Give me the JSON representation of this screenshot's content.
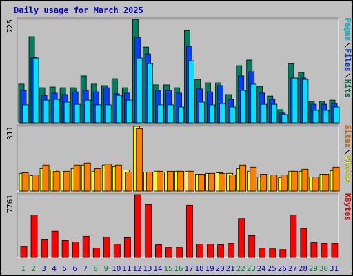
{
  "chart_data": [
    {
      "type": "bar",
      "title": "Daily usage for March 2025",
      "ylim": [
        0,
        725
      ],
      "yticks": [
        725
      ],
      "series": [
        {
          "name": "Hits",
          "color": "#008060",
          "values": [
            271,
            604,
            246,
            251,
            246,
            246,
            329,
            271,
            261,
            309,
            246,
            725,
            531,
            266,
            266,
            246,
            647,
            304,
            280,
            280,
            198,
            401,
            440,
            256,
            188,
            92,
            415,
            353,
            150,
            150,
            159
          ]
        },
        {
          "name": "Files",
          "color": "#0040ff",
          "values": [
            227,
            459,
            193,
            208,
            198,
            217,
            227,
            217,
            246,
            203,
            208,
            599,
            483,
            227,
            227,
            208,
            536,
            237,
            217,
            261,
            164,
            329,
            358,
            208,
            164,
            68,
            314,
            314,
            130,
            130,
            135
          ]
        },
        {
          "name": "Pages",
          "color": "#00e0ff",
          "values": [
            126,
            454,
            159,
            164,
            145,
            130,
            159,
            126,
            126,
            193,
            159,
            454,
            415,
            126,
            126,
            111,
            435,
            145,
            126,
            135,
            111,
            227,
            271,
            130,
            130,
            58,
            314,
            304,
            87,
            87,
            111
          ]
        }
      ]
    },
    {
      "type": "bar",
      "ylim": [
        0,
        311
      ],
      "yticks": [
        311
      ],
      "series": [
        {
          "name": "Visits",
          "color": "#ffff00",
          "values": [
            85,
            74,
            108,
            101,
            91,
            108,
            125,
            95,
            125,
            118,
            101,
            311,
            91,
            95,
            91,
            95,
            95,
            81,
            85,
            88,
            85,
            108,
            95,
            68,
            78,
            64,
            95,
            95,
            68,
            81,
            98
          ]
        },
        {
          "name": "Sites",
          "color": "#ff8000",
          "values": [
            88,
            78,
            125,
            95,
            95,
            125,
            135,
            108,
            130,
            125,
            91,
            300,
            91,
            95,
            95,
            95,
            95,
            81,
            85,
            85,
            78,
            125,
            115,
            81,
            78,
            78,
            95,
            105,
            68,
            81,
            115
          ]
        }
      ]
    },
    {
      "type": "bar",
      "ylim": [
        0,
        7761
      ],
      "yticks": [
        7761
      ],
      "categories": [
        "1",
        "2",
        "3",
        "4",
        "5",
        "6",
        "7",
        "8",
        "9",
        "10",
        "11",
        "12",
        "13",
        "14",
        "15",
        "16",
        "17",
        "18",
        "19",
        "20",
        "21",
        "22",
        "23",
        "24",
        "25",
        "26",
        "27",
        "28",
        "29",
        "30",
        "31"
      ],
      "category_colors": [
        "#008040",
        "#008040",
        "#0000c0",
        "#0000c0",
        "#0000c0",
        "#0000c0",
        "#0000c0",
        "#008040",
        "#008040",
        "#0000c0",
        "#0000c0",
        "#0000c0",
        "#0000c0",
        "#0000c0",
        "#008040",
        "#008040",
        "#0000c0",
        "#0000c0",
        "#0000c0",
        "#0000c0",
        "#0000c0",
        "#008040",
        "#008040",
        "#0000c0",
        "#0000c0",
        "#0000c0",
        "#0000c0",
        "#0000c0",
        "#008040",
        "#008040",
        "#0000c0"
      ],
      "series": [
        {
          "name": "KBytes",
          "color": "#ff0000",
          "values": [
            1308,
            5232,
            2180,
            3227,
            2093,
            1919,
            2616,
            1134,
            2529,
            1657,
            2442,
            7761,
            6540,
            1570,
            1221,
            1221,
            6453,
            1657,
            1657,
            1570,
            1744,
            4796,
            2703,
            1134,
            1046,
            959,
            5232,
            3575,
            1831,
            1744,
            1744
          ]
        }
      ]
    }
  ]
}
